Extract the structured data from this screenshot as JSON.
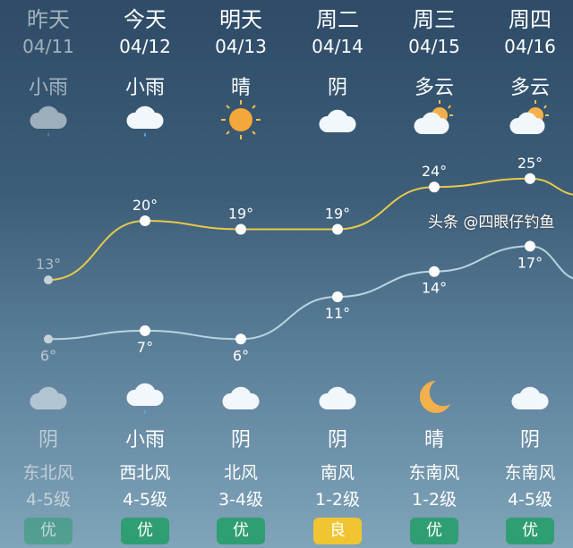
{
  "days": [
    {
      "day": "昨天",
      "date": "04/11",
      "cond": "小雨",
      "icon": "light-rain-icon",
      "high": 13,
      "low": 6,
      "night_cond": "阴",
      "night_icon": "cloud-icon",
      "wind_dir": "东北风",
      "wind_level": "4-5级",
      "aqi": "优",
      "past": true
    },
    {
      "day": "今天",
      "date": "04/12",
      "cond": "小雨",
      "icon": "light-rain-icon",
      "high": 20,
      "low": 7,
      "night_cond": "小雨",
      "night_icon": "light-rain-icon",
      "wind_dir": "西北风",
      "wind_level": "4-5级",
      "aqi": "优"
    },
    {
      "day": "明天",
      "date": "04/13",
      "cond": "晴",
      "icon": "sun-icon",
      "high": 19,
      "low": 6,
      "night_cond": "阴",
      "night_icon": "cloud-icon",
      "wind_dir": "北风",
      "wind_level": "3-4级",
      "aqi": "优"
    },
    {
      "day": "周二",
      "date": "04/14",
      "cond": "阴",
      "icon": "cloud-icon",
      "high": 19,
      "low": 11,
      "night_cond": "阴",
      "night_icon": "cloud-icon",
      "wind_dir": "南风",
      "wind_level": "1-2级",
      "aqi": "良"
    },
    {
      "day": "周三",
      "date": "04/15",
      "cond": "多云",
      "icon": "partly-cloudy-icon",
      "high": 24,
      "low": 14,
      "night_cond": "晴",
      "night_icon": "moon-icon",
      "wind_dir": "东南风",
      "wind_level": "1-2级",
      "aqi": "优"
    },
    {
      "day": "周四",
      "date": "04/16",
      "cond": "多云",
      "icon": "partly-cloudy-icon",
      "high": 25,
      "low": 17,
      "night_cond": "阴",
      "night_icon": "cloud-icon",
      "wind_dir": "东南风",
      "wind_level": "4-5级",
      "aqi": "优"
    }
  ],
  "colors": {
    "high_line": "#e8c84a",
    "low_line": "#b8d4e0",
    "aqi_excellent": "#2f9e72",
    "aqi_good": "#f0c531"
  },
  "watermark": "头条 @四眼仔钓鱼"
}
